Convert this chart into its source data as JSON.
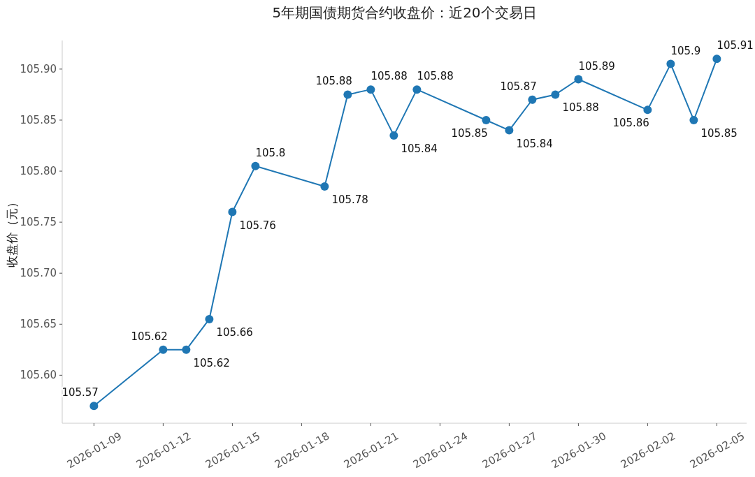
{
  "chart_data": {
    "type": "line",
    "title": "5年期国债期货合约收盘价：近20个交易日",
    "ylabel": "收盘价（元）",
    "x": [
      "2026-01-09",
      "2026-01-12",
      "2026-01-13",
      "2026-01-14",
      "2026-01-15",
      "2026-01-16",
      "2026-01-19",
      "2026-01-20",
      "2026-01-21",
      "2026-01-22",
      "2026-01-23",
      "2026-01-26",
      "2026-01-27",
      "2026-01-28",
      "2026-01-29",
      "2026-01-30",
      "2026-02-02",
      "2026-02-03",
      "2026-02-04",
      "2026-02-05"
    ],
    "series": [
      {
        "color": "#1f77b4",
        "values": [
          105.57,
          105.625,
          105.625,
          105.655,
          105.76,
          105.805,
          105.785,
          105.875,
          105.88,
          105.835,
          105.88,
          105.85,
          105.84,
          105.87,
          105.875,
          105.89,
          105.86,
          105.905,
          105.85,
          105.91
        ],
        "value_labels": [
          "105.57",
          "105.62",
          "105.62",
          "105.66",
          "105.76",
          "105.8",
          "105.78",
          "105.88",
          "105.88",
          "105.84",
          "105.88",
          "105.85",
          "105.84",
          "105.87",
          "105.88",
          "105.89",
          "105.86",
          "105.9",
          "105.85",
          "105.91"
        ]
      }
    ],
    "xlim": [
      "2026-01-07T15:00",
      "2026-02-06T07:00"
    ],
    "xticks": [
      "2026-01-09",
      "2026-01-12",
      "2026-01-15",
      "2026-01-18",
      "2026-01-21",
      "2026-01-24",
      "2026-01-27",
      "2026-01-30",
      "2026-02-02",
      "2026-02-05"
    ],
    "ylim": [
      105.553,
      105.928
    ],
    "yticks": [
      {
        "value": 105.6,
        "label": "105.60"
      },
      {
        "value": 105.65,
        "label": "105.65"
      },
      {
        "value": 105.7,
        "label": "105.70"
      },
      {
        "value": 105.75,
        "label": "105.75"
      },
      {
        "value": 105.8,
        "label": "105.80"
      },
      {
        "value": 105.85,
        "label": "105.85"
      },
      {
        "value": 105.9,
        "label": "105.90"
      }
    ],
    "marker": "circle",
    "line_style": "solid",
    "grid": false
  }
}
